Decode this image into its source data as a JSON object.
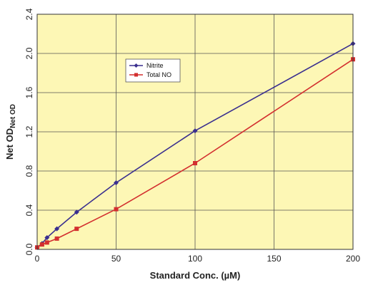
{
  "chart_data": {
    "type": "line",
    "title": "",
    "xlabel": "Standard Conc. (µM)",
    "ylabel": "Net OD",
    "ylabel_subscript": "Net OD",
    "xlim": [
      0,
      200
    ],
    "ylim": [
      0,
      2.4
    ],
    "x_ticks": [
      "0",
      "50",
      "100",
      "150",
      "200"
    ],
    "y_ticks": [
      "0.0",
      "0.4",
      "0.8",
      "1.2",
      "1.6",
      "2.0",
      "2.4"
    ],
    "grid": true,
    "legend_position": "upper-left-center",
    "series": [
      {
        "name": "Nitrite",
        "color": "#3a2f8f",
        "marker": "diamond",
        "x": [
          0,
          3.13,
          6.25,
          12.5,
          25,
          50,
          100,
          200
        ],
        "y": [
          0.02,
          0.06,
          0.12,
          0.21,
          0.38,
          0.68,
          1.21,
          2.1
        ]
      },
      {
        "name": "Total NO",
        "color": "#d32f2f",
        "marker": "square",
        "x": [
          0,
          3.13,
          6.25,
          12.5,
          25,
          50,
          100,
          200
        ],
        "y": [
          0.02,
          0.05,
          0.07,
          0.11,
          0.21,
          0.41,
          0.88,
          1.94
        ]
      }
    ],
    "colors": {
      "plot_background": "#fdf7b5",
      "grid": "#555555",
      "frame": "#333333"
    }
  }
}
